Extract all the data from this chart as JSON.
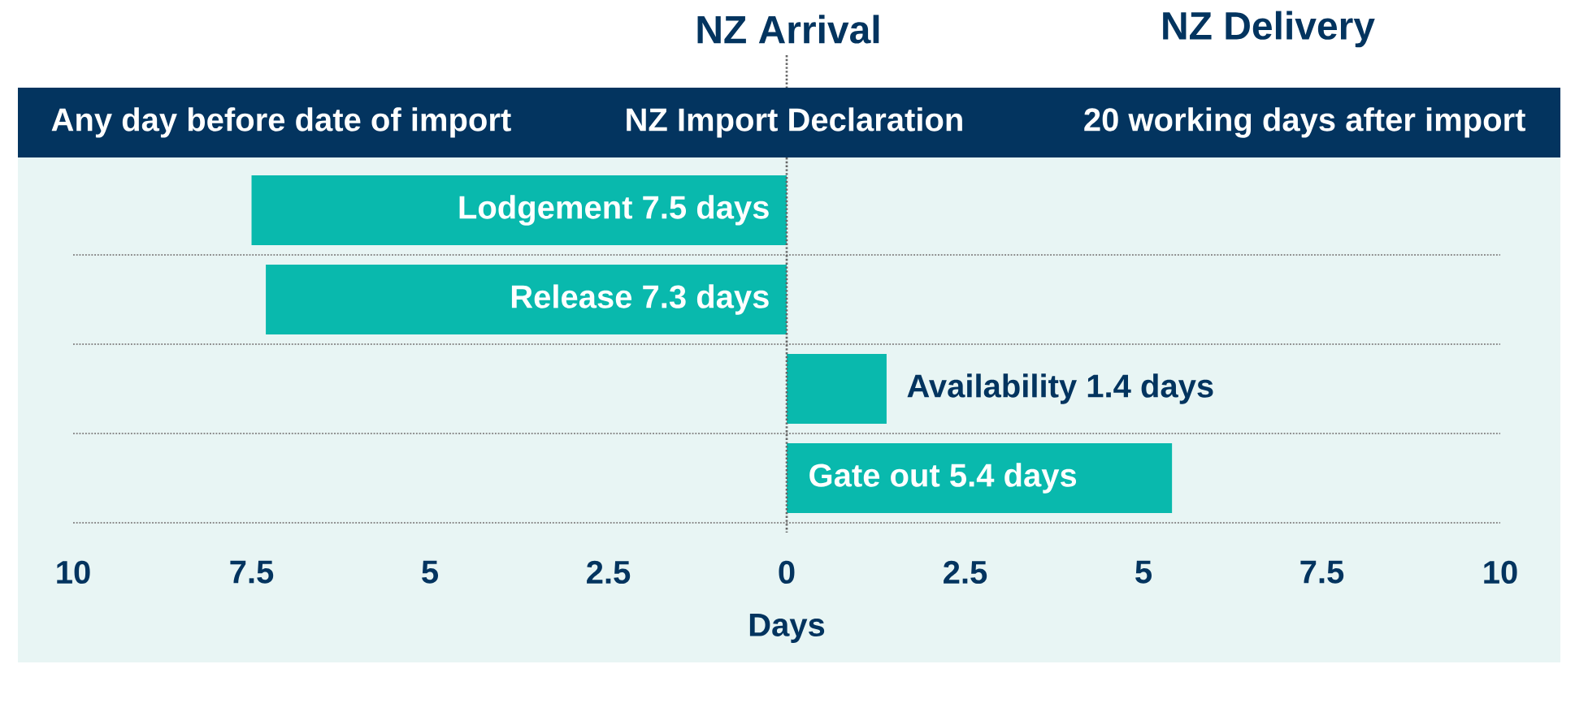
{
  "chart_data": {
    "type": "bar",
    "orientation": "horizontal",
    "xlabel": "Days",
    "categories": [
      null,
      null,
      null,
      null
    ],
    "values": [
      -7.5,
      -7.3,
      1.4,
      5.4
    ],
    "color": "#09b9ad",
    "value_labels": [
      "Lodgement 7.5 days",
      "Release 7.3 days",
      "Availability 1.4 days",
      "Gate out 5.4 days"
    ],
    "xlim": [
      -10,
      10
    ],
    "xticks": [
      {
        "value": -10,
        "label": "10"
      },
      {
        "value": -7.5,
        "label": "7.5"
      },
      {
        "value": -5,
        "label": "5"
      },
      {
        "value": -2.5,
        "label": "2.5"
      },
      0,
      2.5,
      5,
      7.5,
      10
    ],
    "tick_labels": "x",
    "grid": "y",
    "ref_lines": [
      {
        "axis": "x",
        "value": 0,
        "line_style": "dotted",
        "color": "#666666"
      }
    ],
    "annotations": [
      "NZ Arrival",
      "NZ Delivery",
      "Any day before date of import",
      "NZ Import Declaration",
      "20 working days after import"
    ]
  }
}
